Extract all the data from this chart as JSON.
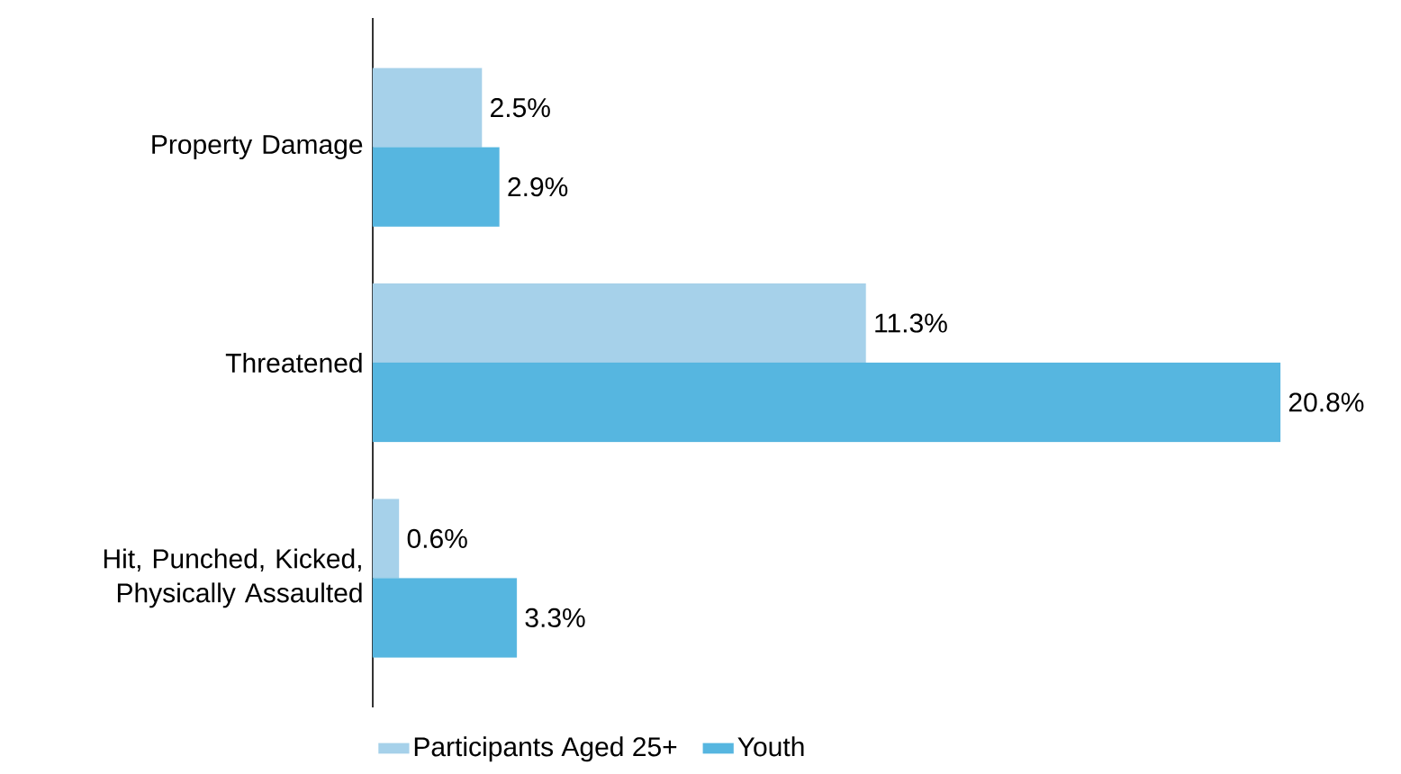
{
  "chart_data": {
    "type": "bar",
    "orientation": "horizontal",
    "categories": [
      "Property Damage",
      "Threatened",
      "Hit, Punched, Kicked, Physically Assaulted"
    ],
    "series": [
      {
        "name": "Participants Aged 25+",
        "color": "#a6d1ea",
        "values": [
          2.5,
          11.3,
          0.6
        ],
        "value_labels": [
          "2.5%",
          "11.3%",
          "0.6%"
        ]
      },
      {
        "name": "Youth",
        "color": "#56b6e0",
        "values": [
          2.9,
          20.8,
          3.3
        ],
        "value_labels": [
          "2.9%",
          "20.8%",
          "3.3%"
        ]
      }
    ],
    "legend": "bottom"
  }
}
